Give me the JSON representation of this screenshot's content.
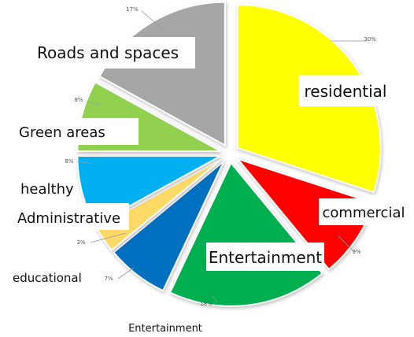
{
  "chart_data": {
    "type": "pie",
    "exploded": true,
    "legend": "none",
    "slices": [
      {
        "category": "residential",
        "value": 30,
        "label": "30%",
        "color": "#ffff00"
      },
      {
        "category": "commercial",
        "value": 9,
        "label": "9%",
        "color": "#ff0000"
      },
      {
        "category": "Entertainment",
        "value": 18,
        "label": "18%",
        "color": "#00b050"
      },
      {
        "category": "educational",
        "value": 7,
        "label": "7%",
        "color": "#0070c0"
      },
      {
        "category": "Administrative",
        "value": 3,
        "label": "3%",
        "color": "#ffd966"
      },
      {
        "category": "healthy",
        "value": 8,
        "label": "8%",
        "color": "#00b0f0"
      },
      {
        "category": "Green areas",
        "value": 8,
        "label": "8%",
        "color": "#92d050"
      },
      {
        "category": "Roads and spaces",
        "value": 17,
        "label": "17%",
        "color": "#a6a6a6"
      }
    ],
    "bottom_category_label": "Entertainment"
  }
}
